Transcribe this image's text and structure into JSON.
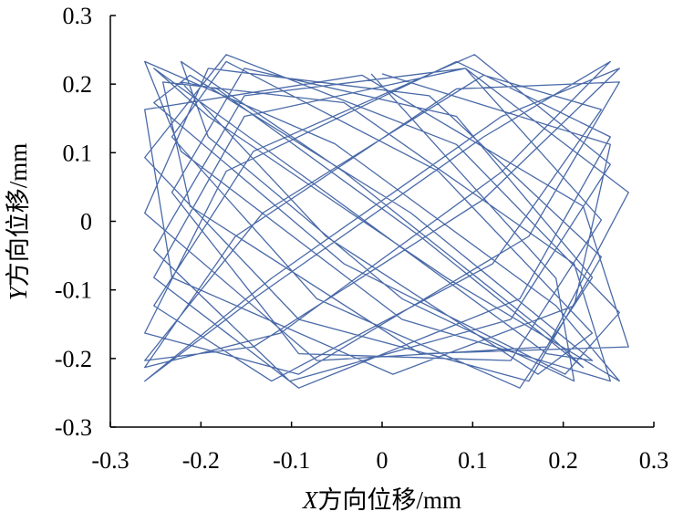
{
  "chart_data": {
    "type": "line",
    "title": "",
    "xlabel_var": "X",
    "xlabel_rest": "方向位移/mm",
    "ylabel_var": "Y",
    "ylabel_rest": "方向位移/mm",
    "xlim": [
      -0.3,
      0.3
    ],
    "ylim": [
      -0.3,
      0.3
    ],
    "x_ticks": [
      -0.3,
      -0.2,
      -0.1,
      0,
      0.1,
      0.2,
      0.3
    ],
    "y_ticks": [
      -0.3,
      -0.2,
      -0.1,
      0,
      0.1,
      0.2,
      0.3
    ],
    "x_tick_labels": [
      "-0.3",
      "-0.2",
      "-0.1",
      "0",
      "0.1",
      "0.2",
      "0.3"
    ],
    "y_tick_labels": [
      "-0.3",
      "-0.2",
      "-0.1",
      "0",
      "0.1",
      "0.2",
      "0.3"
    ],
    "grid": false,
    "legend": "none",
    "series_color": "#4a6aa8",
    "series": [
      {
        "x": [
          0.0,
          0.252,
          0.212,
          0.012,
          -0.232,
          -0.262,
          -0.022,
          0.222,
          0.272,
          0.042,
          -0.212,
          -0.242,
          -0.042,
          0.212,
          0.252,
          0.022,
          -0.222,
          -0.262,
          -0.052,
          0.192,
          0.262,
          0.072,
          -0.192,
          -0.252,
          -0.062,
          0.182,
          0.232,
          0.032,
          -0.212,
          -0.252,
          -0.042,
          0.202,
          0.262,
          0.082,
          -0.172,
          -0.262,
          -0.092,
          0.162,
          0.242,
          0.052,
          -0.192,
          -0.262,
          -0.072,
          0.182,
          0.272,
          0.092,
          -0.152,
          -0.252,
          -0.092,
          0.152,
          0.252,
          0.082,
          -0.172,
          -0.262,
          -0.092,
          0.162,
          0.262,
          0.082,
          -0.162,
          -0.262,
          -0.112,
          0.132,
          0.252,
          0.112,
          -0.142,
          -0.262,
          -0.122,
          0.132,
          0.262,
          0.112,
          -0.142,
          -0.262,
          -0.132,
          0.112,
          0.242,
          0.122,
          -0.122,
          -0.252,
          -0.142,
          0.102,
          0.252,
          0.142,
          -0.102,
          -0.252,
          -0.152,
          0.092,
          0.242,
          0.142,
          -0.092,
          -0.232,
          -0.152,
          0.082,
          0.232,
          0.152,
          -0.072,
          -0.232,
          -0.172,
          0.062,
          0.232,
          0.172,
          -0.062,
          -0.222,
          -0.182,
          0.042,
          0.222,
          0.182,
          -0.042,
          -0.222,
          -0.192,
          0.022,
          0.212,
          0.192,
          -0.012
        ],
        "y": [
          0.215,
          0.112,
          -0.123,
          -0.223,
          -0.082,
          0.163,
          0.213,
          0.022,
          -0.183,
          -0.193,
          0.022,
          0.203,
          0.173,
          -0.062,
          -0.233,
          -0.143,
          0.102,
          0.233,
          0.113,
          -0.123,
          -0.233,
          -0.083,
          0.153,
          0.223,
          0.042,
          -0.193,
          -0.203,
          0.012,
          0.213,
          0.173,
          -0.062,
          -0.223,
          -0.133,
          0.112,
          0.243,
          0.093,
          -0.143,
          -0.233,
          -0.052,
          0.183,
          0.223,
          0.012,
          -0.203,
          -0.183,
          0.042,
          0.223,
          0.153,
          -0.082,
          -0.243,
          -0.113,
          0.123,
          0.233,
          0.073,
          -0.163,
          -0.223,
          -0.022,
          0.203,
          0.193,
          -0.022,
          -0.213,
          -0.163,
          0.072,
          0.233,
          0.123,
          -0.113,
          -0.233,
          -0.083,
          0.153,
          0.223,
          0.032,
          -0.183,
          -0.203,
          0.012,
          0.213,
          0.163,
          -0.062,
          -0.233,
          -0.123,
          0.102,
          0.243,
          0.083,
          -0.143,
          -0.233,
          -0.042,
          0.183,
          0.223,
          0.002,
          -0.203,
          -0.193,
          0.042,
          0.223,
          0.153,
          -0.082,
          -0.243,
          -0.113,
          0.123,
          0.233,
          0.073,
          -0.163,
          -0.223,
          -0.022,
          0.203,
          0.193,
          -0.022,
          -0.213,
          -0.163,
          0.072,
          0.233,
          0.123,
          -0.113,
          -0.233,
          -0.083,
          0.215
        ]
      }
    ]
  }
}
